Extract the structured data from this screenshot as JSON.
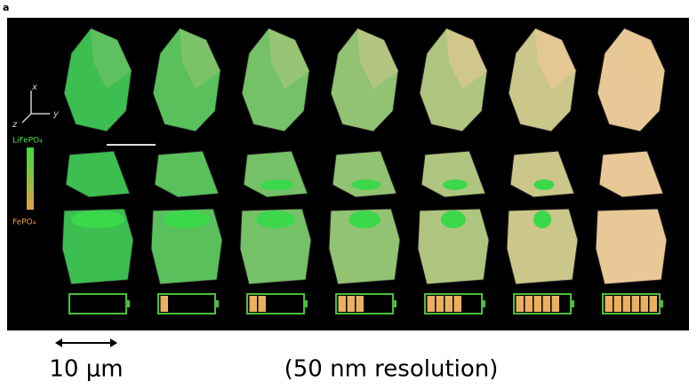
{
  "panel_label": "a",
  "axes": {
    "x": "x",
    "y": "y",
    "z": "z"
  },
  "legend": {
    "top": "LiFePO₄",
    "bottom": "FePO₄"
  },
  "charge_levels": [
    0,
    1,
    2,
    3,
    4,
    5,
    6
  ],
  "scale_label": "10 μm",
  "resolution_label": "(50 nm resolution)"
}
